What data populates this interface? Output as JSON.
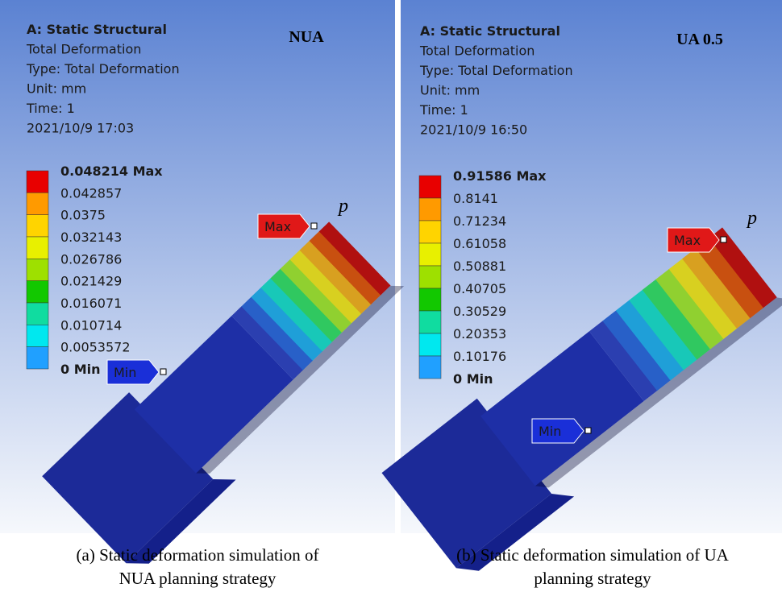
{
  "panels": [
    {
      "header": [
        "A: Static Structural",
        "Total Deformation",
        "Type: Total Deformation",
        "Unit: mm",
        "Time: 1",
        "2021/10/9 17:03"
      ],
      "label": "NUA",
      "legend": [
        "0.048214 Max",
        "0.042857",
        "0.0375",
        "0.032143",
        "0.026786",
        "0.021429",
        "0.016071",
        "0.010714",
        "0.0053572",
        "0 Min"
      ],
      "max_tag": "Max",
      "min_tag": "Min",
      "point": "p",
      "caption": [
        "(a) Static deformation simulation of",
        "NUA planning strategy"
      ]
    },
    {
      "header": [
        "A: Static Structural",
        "Total Deformation",
        "Type: Total Deformation",
        "Unit: mm",
        "Time: 1",
        "2021/10/9 16:50"
      ],
      "label": "UA 0.5",
      "legend": [
        "0.91586 Max",
        "0.8141",
        "0.71234",
        "0.61058",
        "0.50881",
        "0.40705",
        "0.30529",
        "0.20353",
        "0.10176",
        "0 Min"
      ],
      "max_tag": "Max",
      "min_tag": "Min",
      "point": "p",
      "caption": [
        "(b) Static deformation simulation of UA",
        "planning strategy"
      ]
    }
  ]
}
